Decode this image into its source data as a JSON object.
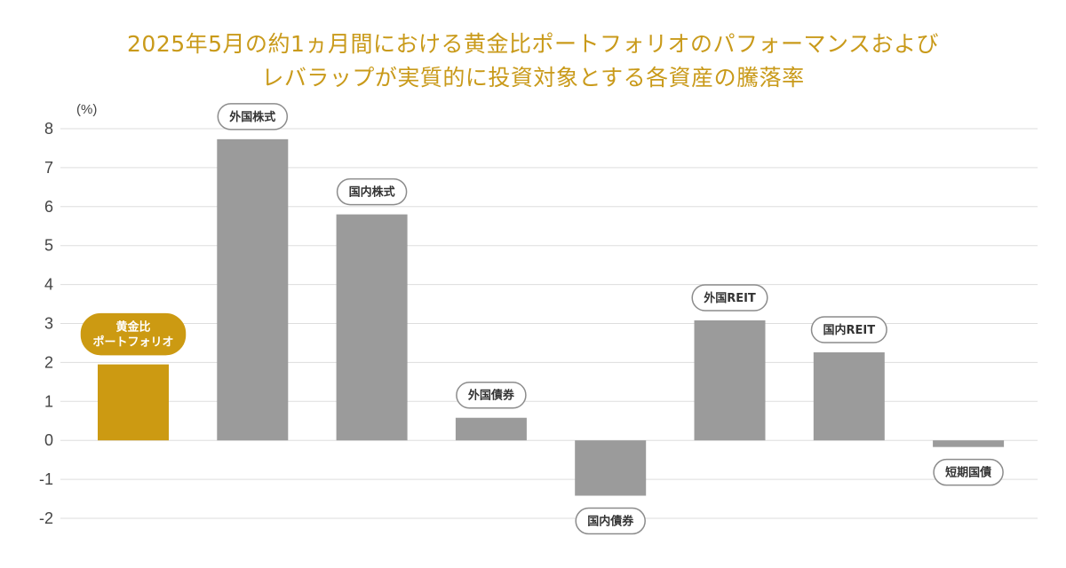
{
  "chart_data": {
    "type": "bar",
    "title": "2025年5月の約1ヵ月間における黄金比ポートフォリオのパフォーマンスおよび",
    "subtitle": "レバラップが実質的に投資対象とする各資産の騰落率",
    "ylabel": "(%)",
    "ylim": [
      -2,
      8
    ],
    "yticks": [
      "8",
      "7",
      "6",
      "5",
      "4",
      "3",
      "2",
      "1",
      "0",
      "-1",
      "-2"
    ],
    "grid": true,
    "categories": [
      [
        "黄金比",
        "ポートフォリオ"
      ],
      [
        "外国株式"
      ],
      [
        "国内株式"
      ],
      [
        "外国債券"
      ],
      [
        "国内債券"
      ],
      [
        "外国REIT"
      ],
      [
        "国内REIT"
      ],
      [
        "短期国債"
      ]
    ],
    "values": [
      1.95,
      7.73,
      5.8,
      0.58,
      -1.42,
      3.08,
      2.26,
      -0.17
    ],
    "highlight_index": 0,
    "colors": {
      "highlight": "#CC9A12",
      "bar": "#9B9B9B",
      "title": "#C99A1A",
      "grid": "#DDDDDD",
      "label_border": "#8C8C8C"
    }
  }
}
